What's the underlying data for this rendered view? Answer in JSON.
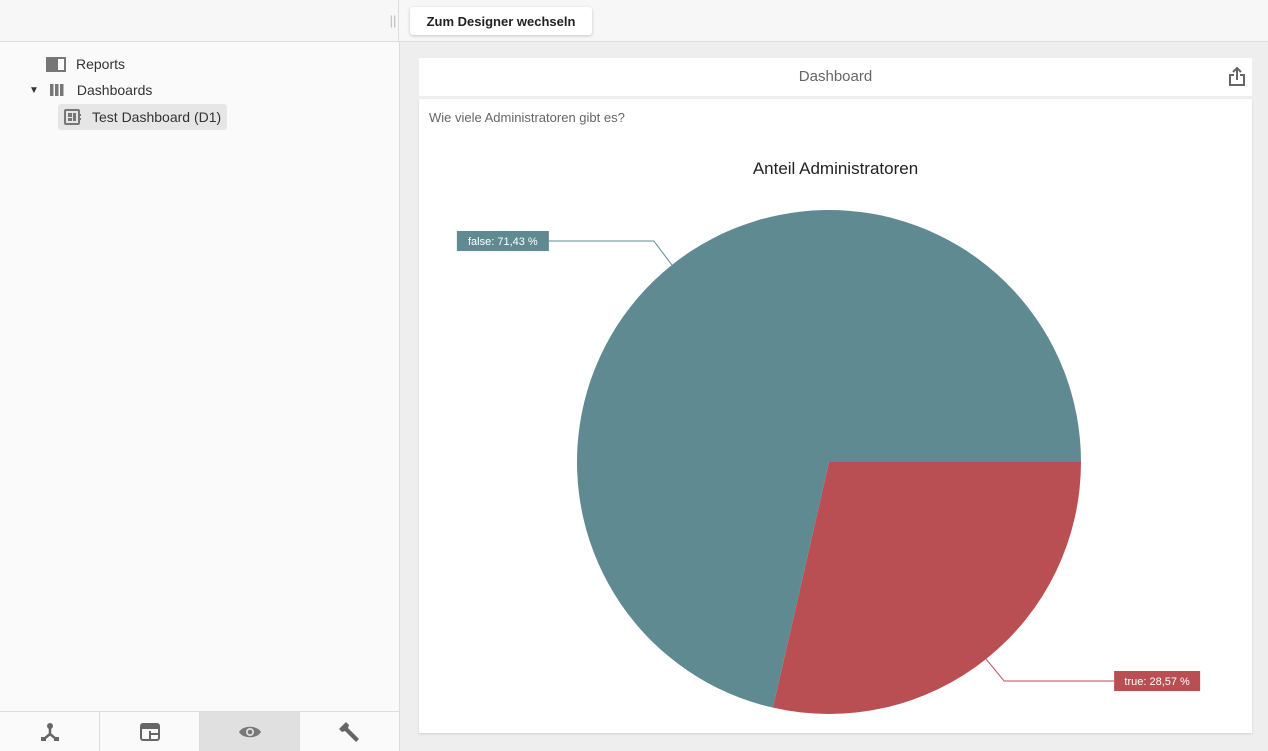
{
  "toolbar": {
    "designer_button": "Zum Designer wechseln"
  },
  "sidebar": {
    "items": [
      {
        "label": "Reports",
        "icon": "book-icon"
      },
      {
        "label": "Dashboards",
        "icon": "columns-icon",
        "expanded": true
      },
      {
        "label": "Test Dashboard (D1)",
        "icon": "dashboard-icon",
        "selected": true
      }
    ],
    "bottom_tabs": [
      {
        "icon": "hierarchy-icon"
      },
      {
        "icon": "layout-icon"
      },
      {
        "icon": "eye-icon",
        "active": true
      },
      {
        "icon": "wrench-icon"
      }
    ]
  },
  "dashboard": {
    "title": "Dashboard",
    "question": "Wie viele Administratoren gibt es?"
  },
  "chart_data": {
    "type": "pie",
    "title": "Anteil Administratoren",
    "slices": [
      {
        "label": "true",
        "value": 28.57,
        "text": "true: 28,57 %",
        "color": "#b94e53"
      },
      {
        "label": "false",
        "value": 71.43,
        "text": "false: 71,43 %",
        "color": "#5f8a92"
      }
    ]
  }
}
